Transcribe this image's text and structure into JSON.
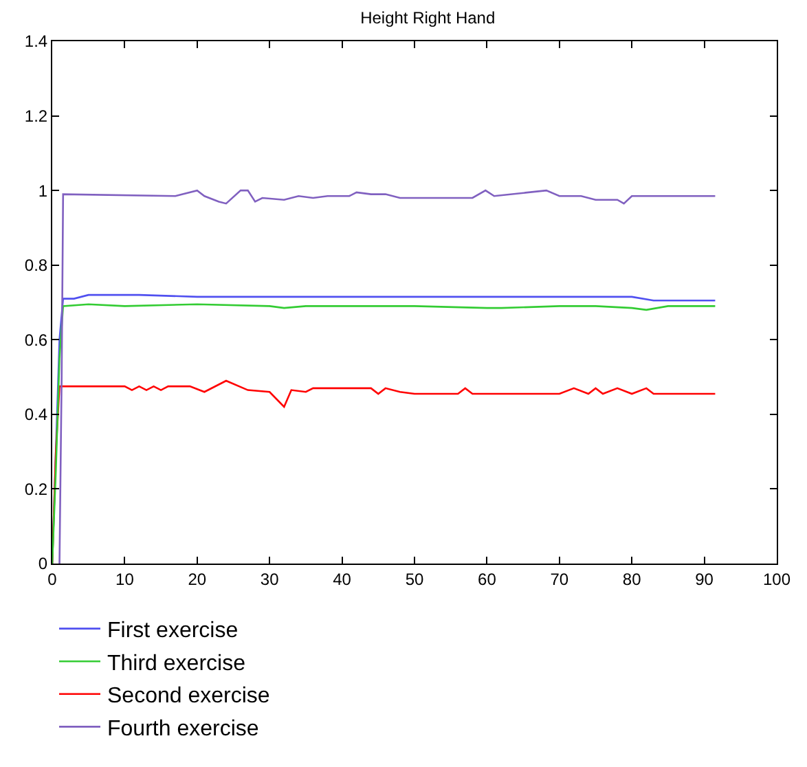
{
  "chart_data": {
    "type": "line",
    "title": "Height Right Hand",
    "xlim": [
      0,
      100
    ],
    "xticks": [
      0,
      10,
      20,
      30,
      40,
      50,
      60,
      70,
      80,
      90,
      100
    ],
    "ylim": [
      0,
      1.4
    ],
    "yticks": [
      0,
      0.2,
      0.4,
      0.6,
      0.8,
      1,
      1.2,
      1.4
    ],
    "legend": "bottom",
    "marker": "none",
    "line_style": "solid",
    "series": [
      {
        "name": "First exercise",
        "color": "#5050f0",
        "x": [
          0,
          0.5,
          1,
          1.5,
          3,
          5,
          12,
          20,
          40,
          60,
          80,
          83,
          91.5
        ],
        "values": [
          0,
          0.3,
          0.6,
          0.71,
          0.71,
          0.72,
          0.72,
          0.715,
          0.715,
          0.715,
          0.715,
          0.705,
          0.705
        ]
      },
      {
        "name": "Second exercise",
        "color": "#ff0000",
        "x": [
          0,
          0.5,
          1,
          10,
          11,
          12,
          13,
          14,
          15,
          16,
          19,
          21,
          24,
          27,
          30,
          32,
          33,
          35,
          36,
          44,
          45,
          46,
          48,
          50,
          56,
          57,
          58,
          67,
          70,
          72,
          74,
          75,
          76,
          78,
          80,
          82,
          83,
          91.5
        ],
        "values": [
          0,
          0.3,
          0.475,
          0.475,
          0.465,
          0.475,
          0.465,
          0.475,
          0.465,
          0.475,
          0.475,
          0.46,
          0.49,
          0.465,
          0.46,
          0.42,
          0.465,
          0.46,
          0.47,
          0.47,
          0.455,
          0.47,
          0.46,
          0.455,
          0.455,
          0.47,
          0.455,
          0.455,
          0.455,
          0.47,
          0.455,
          0.47,
          0.455,
          0.47,
          0.455,
          0.47,
          0.455,
          0.455
        ]
      },
      {
        "name": "Third exercise",
        "color": "#33cc33",
        "x": [
          0,
          0.5,
          1,
          1.5,
          5,
          10,
          20,
          30,
          32,
          35,
          40,
          50,
          60,
          62,
          70,
          75,
          80,
          82,
          85,
          91.5
        ],
        "values": [
          0,
          0.25,
          0.55,
          0.69,
          0.695,
          0.69,
          0.695,
          0.69,
          0.685,
          0.69,
          0.69,
          0.69,
          0.685,
          0.685,
          0.69,
          0.69,
          0.685,
          0.68,
          0.69,
          0.69
        ]
      },
      {
        "name": "Fourth exercise",
        "color": "#8060c0",
        "x": [
          1,
          1.3,
          1.5,
          17,
          18,
          20,
          21,
          23,
          24,
          26,
          27,
          28,
          29,
          32,
          34,
          36,
          38,
          41,
          42,
          44,
          46,
          48,
          58,
          59.8,
          61,
          68.2,
          70,
          73,
          75,
          78,
          78.9,
          80,
          91.5
        ],
        "values": [
          0,
          0.5,
          0.99,
          0.985,
          0.99,
          1.0,
          0.985,
          0.97,
          0.965,
          1.0,
          1.0,
          0.97,
          0.98,
          0.975,
          0.985,
          0.98,
          0.985,
          0.985,
          0.995,
          0.99,
          0.99,
          0.98,
          0.98,
          1.0,
          0.985,
          1.0,
          0.985,
          0.985,
          0.975,
          0.975,
          0.965,
          0.985,
          0.985
        ]
      }
    ]
  }
}
